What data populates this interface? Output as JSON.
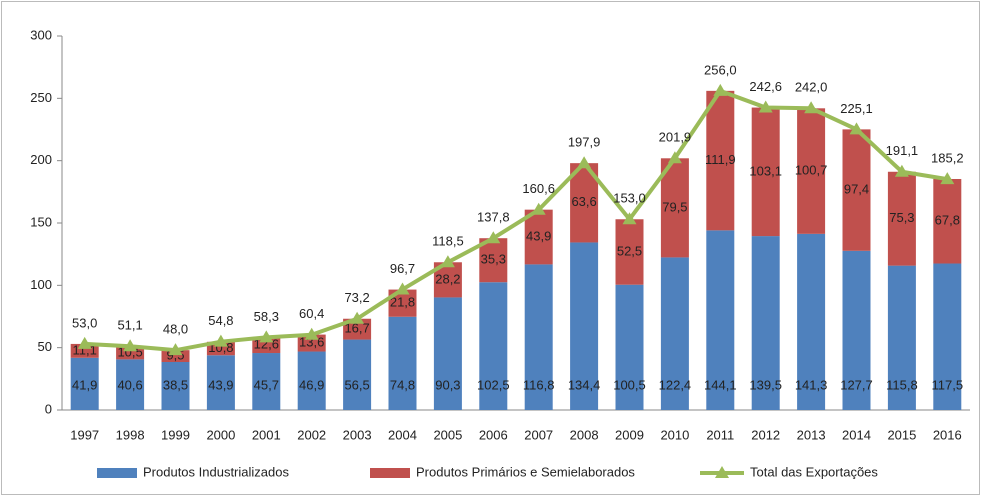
{
  "chart_data": {
    "type": "bar",
    "stacked": true,
    "categories": [
      "1997",
      "1998",
      "1999",
      "2000",
      "2001",
      "2002",
      "2003",
      "2004",
      "2005",
      "2006",
      "2007",
      "2008",
      "2009",
      "2010",
      "2011",
      "2012",
      "2013",
      "2014",
      "2015",
      "2016"
    ],
    "series": [
      {
        "name": "Produtos Industrializados",
        "color": "#4f81bd",
        "type": "bar",
        "values": [
          41.9,
          40.6,
          38.5,
          43.9,
          45.7,
          46.9,
          56.5,
          74.8,
          90.3,
          102.5,
          116.8,
          134.4,
          100.5,
          122.4,
          144.1,
          139.5,
          141.3,
          127.7,
          115.8,
          117.5
        ],
        "value_labels": [
          "41,9",
          "40,6",
          "38,5",
          "43,9",
          "45,7",
          "46,9",
          "56,5",
          "74,8",
          "90,3",
          "102,5",
          "116,8",
          "134,4",
          "100,5",
          "122,4",
          "144,1",
          "139,5",
          "141,3",
          "127,7",
          "115,8",
          "117,5"
        ]
      },
      {
        "name": "Produtos Primários e Semielaborados",
        "color": "#c0504d",
        "type": "bar",
        "values": [
          11.1,
          10.5,
          9.5,
          10.8,
          12.6,
          13.6,
          16.7,
          21.8,
          28.2,
          35.3,
          43.9,
          63.6,
          52.5,
          79.5,
          111.9,
          103.1,
          100.7,
          97.4,
          75.3,
          67.8
        ],
        "value_labels": [
          "11,1",
          "10,5",
          "9,5",
          "10,8",
          "12,6",
          "13,6",
          "16,7",
          "21,8",
          "28,2",
          "35,3",
          "43,9",
          "63,6",
          "52,5",
          "79,5",
          "111,9",
          "103,1",
          "100,7",
          "97,4",
          "75,3",
          "67,8"
        ]
      },
      {
        "name": "Total das Exportações",
        "color": "#9bbb59",
        "type": "line",
        "values": [
          53.0,
          51.1,
          48.0,
          54.8,
          58.3,
          60.4,
          73.2,
          96.7,
          118.5,
          137.8,
          160.6,
          197.9,
          153.0,
          201.9,
          256.0,
          242.6,
          242.0,
          225.1,
          191.1,
          185.2
        ],
        "value_labels": [
          "53,0",
          "51,1",
          "48,0",
          "54,8",
          "58,3",
          "60,4",
          "73,2",
          "96,7",
          "118,5",
          "137,8",
          "160,6",
          "197,9",
          "153,0",
          "201,9",
          "256,0",
          "242,6",
          "242,0",
          "225,1",
          "191,1",
          "185,2"
        ]
      }
    ],
    "ylim": [
      0,
      300
    ],
    "yticks": [
      0,
      50,
      100,
      150,
      200,
      250,
      300
    ],
    "grid": false,
    "legend": "bottom"
  }
}
